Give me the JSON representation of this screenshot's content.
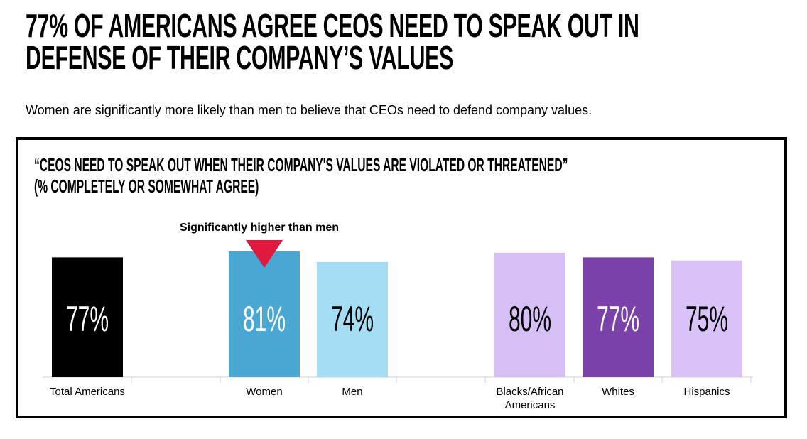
{
  "headline": {
    "line1": "77% of Americans agree CEOs need to speak out in",
    "line2": "defense of their company’s values"
  },
  "subtitle": "Women are significantly more likely than men to believe that CEOs need to defend company values.",
  "colors": {
    "total": "#000000",
    "women": "#4aa7d2",
    "men": "#a5ddf5",
    "blacks": "#d6bff5",
    "whites": "#7a42a8",
    "hispanics": "#d9c2f7",
    "annotation_marker": "#e0193f"
  },
  "chart_data": {
    "type": "bar",
    "title_line1": "“CEOs need to speak out when their company's values are violated or threatened”",
    "title_line2": "(% completely or somewhat agree)",
    "xlabel": "",
    "ylabel": "",
    "ylim": [
      0,
      100
    ],
    "grid": false,
    "categories": [
      "Total Americans",
      "Women",
      "Men",
      "Blacks/African Americans",
      "Whites",
      "Hispanics"
    ],
    "values": [
      77,
      81,
      74,
      80,
      77,
      75
    ],
    "value_labels": [
      "77%",
      "81%",
      "74%",
      "80%",
      "77%",
      "75%"
    ],
    "annotation": {
      "text": "Significantly higher than men",
      "category": "Women"
    }
  }
}
